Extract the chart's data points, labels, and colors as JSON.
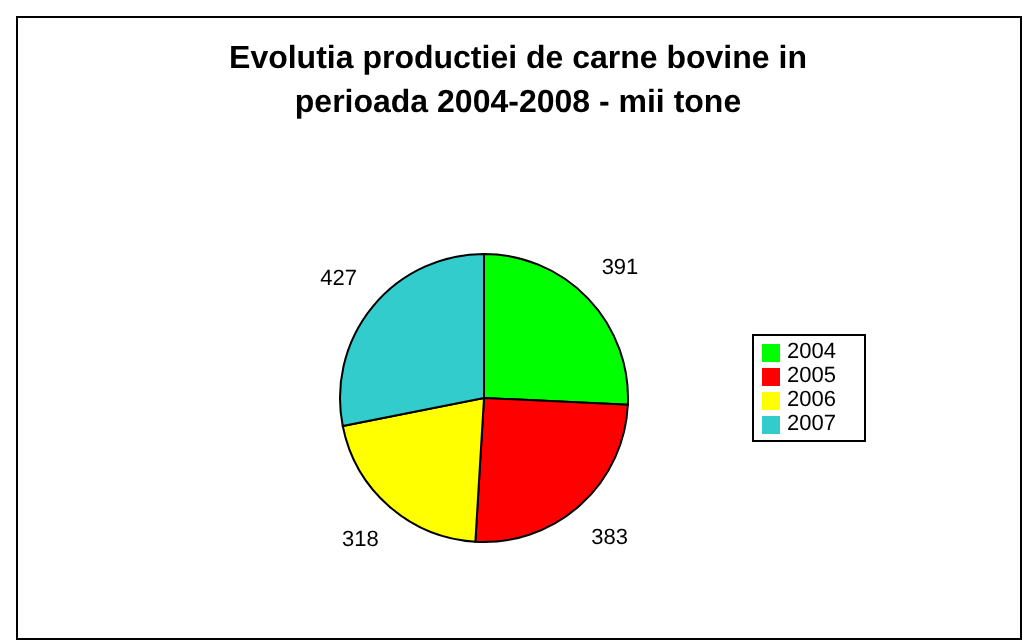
{
  "chart_data": {
    "type": "pie",
    "title": "Evolutia productiei de carne bovine in perioada 2004-2008 - mii tone",
    "categories": [
      "2004",
      "2005",
      "2006",
      "2007"
    ],
    "values": [
      391,
      383,
      318,
      427
    ],
    "colors": [
      "#00ff00",
      "#ff0000",
      "#ffff00",
      "#33cccc"
    ],
    "data_labels": true,
    "legend": "right"
  }
}
